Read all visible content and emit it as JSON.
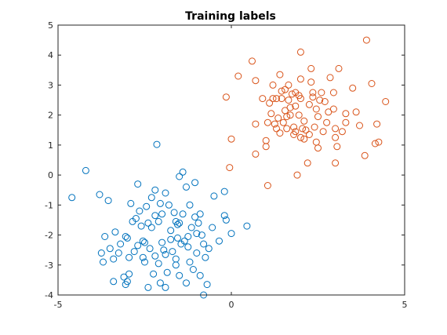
{
  "chart_data": {
    "type": "scatter",
    "title": "Training labels",
    "xlabel": "",
    "ylabel": "",
    "xlim": [
      -5,
      5
    ],
    "ylim": [
      -4,
      5
    ],
    "xticks": [
      "-5",
      "0",
      "5"
    ],
    "yticks": [
      "-4",
      "-3",
      "-2",
      "-1",
      "0",
      "1",
      "2",
      "3",
      "4",
      "5"
    ],
    "grid": false,
    "series": [
      {
        "color": "#0072BD",
        "marker": "circle-open",
        "points": [
          [
            -4.6,
            -0.75
          ],
          [
            -4.2,
            0.15
          ],
          [
            -3.8,
            -0.65
          ],
          [
            -3.55,
            -0.85
          ],
          [
            -3.65,
            -2.05
          ],
          [
            -3.5,
            -2.45
          ],
          [
            -3.75,
            -2.6
          ],
          [
            -3.7,
            -2.9
          ],
          [
            -3.4,
            -2.8
          ],
          [
            -3.2,
            -2.3
          ],
          [
            -3.05,
            -2.05
          ],
          [
            -3.0,
            -2.1
          ],
          [
            -3.1,
            -3.4
          ],
          [
            -2.95,
            -3.3
          ],
          [
            -3.0,
            -3.55
          ],
          [
            -3.05,
            -3.65
          ],
          [
            -2.95,
            -2.75
          ],
          [
            -2.9,
            -0.95
          ],
          [
            -2.85,
            -1.55
          ],
          [
            -2.7,
            -0.3
          ],
          [
            -2.65,
            -1.2
          ],
          [
            -2.7,
            -2.35
          ],
          [
            -2.5,
            -2.25
          ],
          [
            -2.55,
            -2.75
          ],
          [
            -2.5,
            -2.9
          ],
          [
            -2.4,
            -1.6
          ],
          [
            -2.3,
            -1.75
          ],
          [
            -2.4,
            -3.75
          ],
          [
            -2.2,
            -0.5
          ],
          [
            -2.3,
            -0.75
          ],
          [
            -2.05,
            -0.95
          ],
          [
            -2.0,
            -1.3
          ],
          [
            -2.1,
            -1.55
          ],
          [
            -2.0,
            -2.25
          ],
          [
            -1.95,
            -2.5
          ],
          [
            -1.9,
            -2.65
          ],
          [
            -1.85,
            -3.25
          ],
          [
            -2.05,
            -3.6
          ],
          [
            -1.9,
            -3.75
          ],
          [
            -2.15,
            1.02
          ],
          [
            -1.8,
            -1.0
          ],
          [
            -1.6,
            -1.55
          ],
          [
            -1.55,
            -1.65
          ],
          [
            -1.5,
            -1.6
          ],
          [
            -1.55,
            -2.1
          ],
          [
            -1.45,
            -2.3
          ],
          [
            -1.6,
            -2.8
          ],
          [
            -1.5,
            -3.35
          ],
          [
            -1.3,
            -3.6
          ],
          [
            -1.5,
            -0.05
          ],
          [
            -1.3,
            -0.4
          ],
          [
            -1.2,
            -1.0
          ],
          [
            -1.4,
            -1.3
          ],
          [
            -1.35,
            -2.2
          ],
          [
            -1.25,
            -2.4
          ],
          [
            -1.2,
            -2.9
          ],
          [
            -1.1,
            -3.15
          ],
          [
            -1.4,
            0.1
          ],
          [
            -1.05,
            -0.25
          ],
          [
            -0.9,
            -1.3
          ],
          [
            -0.95,
            -1.6
          ],
          [
            -0.85,
            -2.0
          ],
          [
            -0.8,
            -2.3
          ],
          [
            -0.75,
            -2.75
          ],
          [
            -1.0,
            -2.6
          ],
          [
            -0.9,
            -3.35
          ],
          [
            -0.7,
            -3.65
          ],
          [
            -0.5,
            -0.7
          ],
          [
            -0.55,
            -1.75
          ],
          [
            -0.35,
            -2.2
          ],
          [
            -0.2,
            -0.55
          ],
          [
            -0.2,
            -1.35
          ],
          [
            -0.15,
            -1.5
          ],
          [
            0.0,
            -1.95
          ],
          [
            0.45,
            -1.7
          ],
          [
            -0.8,
            -4.0
          ],
          [
            -1.75,
            -2.15
          ],
          [
            -2.55,
            -2.2
          ],
          [
            -2.25,
            -3.3
          ],
          [
            -2.6,
            -1.7
          ],
          [
            -2.1,
            -2.95
          ],
          [
            -3.25,
            -2.6
          ],
          [
            -1.0,
            -1.95
          ],
          [
            -2.2,
            -1.35
          ],
          [
            -1.6,
            -3.0
          ],
          [
            -2.75,
            -1.45
          ],
          [
            -1.15,
            -1.75
          ],
          [
            -3.4,
            -3.55
          ],
          [
            -2.35,
            -2.45
          ],
          [
            -1.7,
            -2.55
          ],
          [
            -2.45,
            -1.05
          ],
          [
            -1.75,
            -1.85
          ],
          [
            -1.05,
            -1.4
          ],
          [
            -2.8,
            -2.55
          ],
          [
            -1.65,
            -1.25
          ],
          [
            -3.35,
            -1.9
          ],
          [
            -2.2,
            -2.7
          ],
          [
            -1.25,
            -2.05
          ],
          [
            -0.65,
            -2.45
          ],
          [
            -1.9,
            -0.6
          ]
        ]
      },
      {
        "color": "#D95319",
        "marker": "circle-open",
        "points": [
          [
            -0.15,
            2.6
          ],
          [
            -0.05,
            0.25
          ],
          [
            0.0,
            1.2
          ],
          [
            0.2,
            3.3
          ],
          [
            0.6,
            3.8
          ],
          [
            0.7,
            3.15
          ],
          [
            0.7,
            0.7
          ],
          [
            0.7,
            1.7
          ],
          [
            0.9,
            2.55
          ],
          [
            1.05,
            1.75
          ],
          [
            1.0,
            1.15
          ],
          [
            1.0,
            0.95
          ],
          [
            1.05,
            -0.35
          ],
          [
            1.1,
            2.4
          ],
          [
            1.2,
            3.0
          ],
          [
            1.3,
            2.55
          ],
          [
            1.3,
            1.55
          ],
          [
            1.4,
            3.35
          ],
          [
            1.45,
            2.8
          ],
          [
            1.55,
            2.15
          ],
          [
            1.5,
            1.75
          ],
          [
            1.6,
            1.55
          ],
          [
            1.65,
            3.0
          ],
          [
            1.65,
            2.5
          ],
          [
            1.7,
            2.0
          ],
          [
            1.8,
            1.6
          ],
          [
            1.85,
            2.3
          ],
          [
            1.8,
            1.35
          ],
          [
            1.9,
            0.0
          ],
          [
            2.0,
            4.1
          ],
          [
            2.0,
            3.2
          ],
          [
            2.0,
            2.55
          ],
          [
            2.1,
            1.8
          ],
          [
            2.1,
            1.2
          ],
          [
            2.2,
            0.4
          ],
          [
            2.3,
            3.55
          ],
          [
            2.3,
            3.1
          ],
          [
            2.35,
            2.6
          ],
          [
            2.45,
            2.2
          ],
          [
            2.4,
            1.6
          ],
          [
            2.45,
            1.1
          ],
          [
            2.5,
            0.9
          ],
          [
            2.6,
            2.75
          ],
          [
            2.7,
            2.45
          ],
          [
            2.75,
            1.75
          ],
          [
            2.85,
            3.25
          ],
          [
            2.95,
            2.75
          ],
          [
            2.95,
            2.2
          ],
          [
            3.0,
            1.55
          ],
          [
            3.0,
            1.25
          ],
          [
            3.05,
            0.95
          ],
          [
            3.0,
            0.4
          ],
          [
            3.1,
            3.55
          ],
          [
            3.3,
            1.75
          ],
          [
            3.5,
            2.9
          ],
          [
            3.6,
            2.1
          ],
          [
            3.7,
            1.65
          ],
          [
            3.85,
            0.65
          ],
          [
            3.9,
            4.5
          ],
          [
            4.05,
            3.05
          ],
          [
            4.15,
            1.05
          ],
          [
            4.2,
            1.7
          ],
          [
            4.25,
            1.1
          ],
          [
            4.45,
            2.45
          ],
          [
            1.2,
            2.55
          ],
          [
            1.4,
            1.4
          ],
          [
            1.55,
            2.85
          ],
          [
            1.75,
            2.7
          ],
          [
            1.95,
            2.0
          ],
          [
            2.25,
            2.35
          ],
          [
            2.55,
            2.5
          ],
          [
            2.8,
            2.1
          ],
          [
            3.2,
            1.45
          ],
          [
            1.25,
            1.7
          ],
          [
            1.6,
            1.95
          ],
          [
            1.85,
            1.45
          ],
          [
            2.15,
            1.5
          ],
          [
            2.35,
            2.75
          ],
          [
            2.65,
            1.45
          ],
          [
            1.95,
            2.65
          ],
          [
            1.45,
            2.55
          ],
          [
            1.7,
            2.25
          ],
          [
            1.15,
            2.05
          ],
          [
            2.05,
            1.55
          ],
          [
            2.5,
            1.95
          ],
          [
            1.35,
            1.9
          ],
          [
            2.0,
            1.25
          ],
          [
            1.85,
            2.75
          ],
          [
            3.3,
            2.05
          ],
          [
            2.25,
            1.35
          ]
        ]
      }
    ]
  }
}
